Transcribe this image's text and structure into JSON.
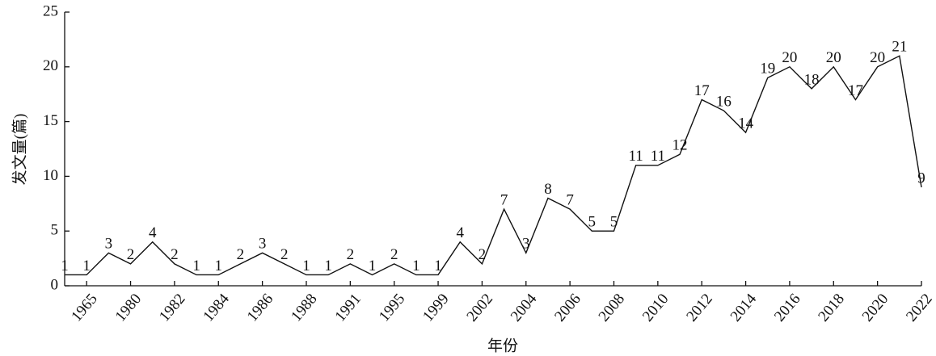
{
  "chart_data": {
    "type": "line",
    "x_label": "年份",
    "y_label": "发文量(篇)",
    "categories": [
      null,
      "1965",
      null,
      "1980",
      null,
      "1982",
      null,
      "1984",
      null,
      "1986",
      null,
      "1988",
      null,
      "1991",
      null,
      "1995",
      null,
      "1999",
      null,
      "2002",
      null,
      "2004",
      null,
      "2006",
      null,
      "2008",
      null,
      "2010",
      null,
      "2012",
      null,
      "2014",
      null,
      "2016",
      null,
      "2018",
      null,
      "2020",
      null,
      "2022"
    ],
    "values": [
      1,
      1,
      3,
      2,
      4,
      2,
      1,
      1,
      2,
      3,
      2,
      1,
      1,
      2,
      1,
      2,
      1,
      1,
      4,
      2,
      7,
      3,
      8,
      7,
      5,
      5,
      11,
      11,
      12,
      17,
      16,
      14,
      19,
      20,
      18,
      20,
      17,
      20,
      21,
      9
    ],
    "color": "#111111",
    "ylim": [
      0,
      25
    ],
    "yticks": [
      0,
      5,
      10,
      15,
      20,
      25
    ]
  }
}
